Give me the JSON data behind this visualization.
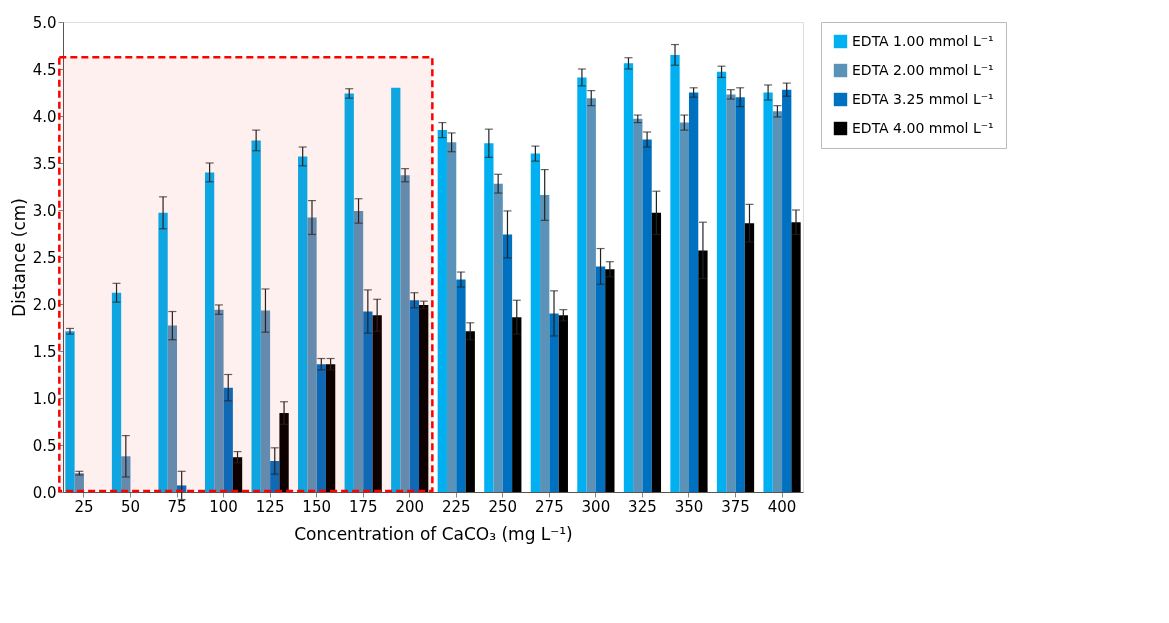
{
  "chart_data": {
    "type": "bar",
    "xlabel": "Concentration  of  CaCO₃  (mg L⁻¹)",
    "ylabel": "Distance  (cm)",
    "categories": [
      "25",
      "50",
      "75",
      "100",
      "125",
      "150",
      "175",
      "200",
      "225",
      "250",
      "275",
      "300",
      "325",
      "350",
      "375",
      "400"
    ],
    "series": [
      {
        "name": "EDTA 1.00 mmol L⁻¹",
        "color": "#00b0f0",
        "values": [
          1.71,
          2.12,
          2.97,
          3.4,
          3.74,
          3.57,
          4.24,
          4.3,
          3.85,
          3.71,
          3.6,
          4.41,
          4.56,
          4.65,
          4.47,
          4.25
        ],
        "errors": [
          0.03,
          0.1,
          0.17,
          0.1,
          0.11,
          0.1,
          0.05,
          null,
          0.08,
          0.15,
          0.08,
          0.09,
          0.06,
          0.11,
          0.06,
          0.08
        ]
      },
      {
        "name": "EDTA 2.00 mmol L⁻¹",
        "color": "#5b93b8",
        "values": [
          0.2,
          0.38,
          1.77,
          1.94,
          1.93,
          2.92,
          2.99,
          3.37,
          3.72,
          3.28,
          3.16,
          4.19,
          3.97,
          3.93,
          4.23,
          4.05
        ],
        "errors": [
          0.02,
          0.22,
          0.15,
          0.05,
          0.23,
          0.18,
          0.13,
          0.07,
          0.1,
          0.1,
          0.27,
          0.08,
          0.04,
          0.08,
          0.05,
          0.06
        ]
      },
      {
        "name": "EDTA 3.25 mmol L⁻¹",
        "color": "#0070c0",
        "values": [
          null,
          null,
          0.07,
          1.11,
          0.33,
          1.36,
          1.92,
          2.04,
          2.26,
          2.74,
          1.9,
          2.4,
          3.75,
          4.25,
          4.2,
          4.28
        ],
        "errors": [
          null,
          null,
          0.15,
          0.14,
          0.14,
          0.06,
          0.23,
          0.08,
          0.08,
          0.25,
          0.24,
          0.19,
          0.08,
          0.05,
          0.1,
          0.07
        ]
      },
      {
        "name": "EDTA 4.00 mmol L⁻¹",
        "color": "#000000",
        "values": [
          null,
          null,
          null,
          0.37,
          0.84,
          1.36,
          1.88,
          1.99,
          1.71,
          1.86,
          1.88,
          2.37,
          2.97,
          2.57,
          2.86,
          2.87
        ],
        "errors": [
          null,
          null,
          null,
          0.06,
          0.12,
          0.06,
          0.17,
          0.04,
          0.09,
          0.18,
          0.06,
          0.08,
          0.23,
          0.3,
          0.2,
          0.13
        ]
      }
    ],
    "ylim": [
      0,
      5
    ],
    "yticks": [
      {
        "value": 0,
        "label": "0.0"
      },
      0.5,
      {
        "value": 1,
        "label": "1.0"
      },
      1.5,
      {
        "value": 2,
        "label": "2.0"
      },
      2.5,
      {
        "value": 3,
        "label": "3.0"
      },
      3.5,
      {
        "value": 4,
        "label": "4.0"
      },
      4.5,
      {
        "value": 5,
        "label": "5.0"
      }
    ],
    "bands": [
      {
        "axis": "x",
        "from": "25",
        "to": "200",
        "color": "#ff0000"
      }
    ],
    "grid": false,
    "legend": "top right"
  }
}
